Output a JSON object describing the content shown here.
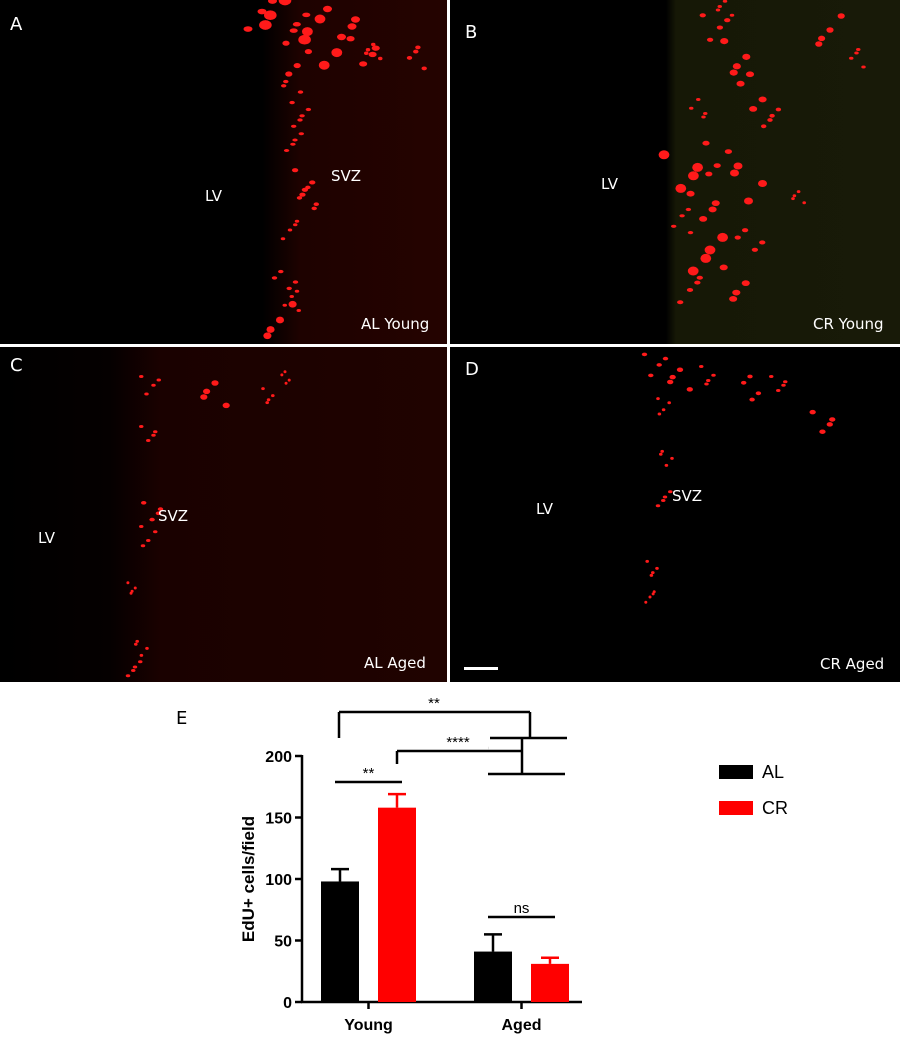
{
  "panels": [
    {
      "letter": "A",
      "lv": "LV",
      "svz": "SVZ",
      "caption": "AL Young"
    },
    {
      "letter": "B",
      "lv": "LV",
      "svz": "",
      "caption": "CR Young"
    },
    {
      "letter": "C",
      "lv": "LV",
      "svz": "SVZ",
      "caption": "AL Aged"
    },
    {
      "letter": "D",
      "lv": "LV",
      "svz": "SVZ",
      "caption": "CR Aged"
    }
  ],
  "colors": {
    "al": "#000000",
    "cr": "#ff0000",
    "edu": "#ff1a1a"
  },
  "panel_e_letter": "E",
  "chart_data": {
    "type": "bar",
    "categories": [
      "Young",
      "Aged"
    ],
    "series": [
      {
        "name": "AL",
        "values": [
          98,
          41
        ],
        "errors": [
          10,
          14
        ]
      },
      {
        "name": "CR",
        "values": [
          158,
          31
        ],
        "errors": [
          11,
          5
        ]
      }
    ],
    "ylabel": "EdU+ cells/field",
    "ylim": [
      0,
      200
    ],
    "yticks": [
      0,
      50,
      100,
      150,
      200
    ],
    "legend": "right",
    "significance": [
      {
        "label": "**",
        "compare": "AL Young vs CR Young"
      },
      {
        "label": "ns",
        "compare": "AL Aged vs CR Aged"
      },
      {
        "label": "****",
        "compare": "CR Young vs Aged"
      },
      {
        "label": "**",
        "compare": "AL Young vs Aged"
      }
    ]
  }
}
